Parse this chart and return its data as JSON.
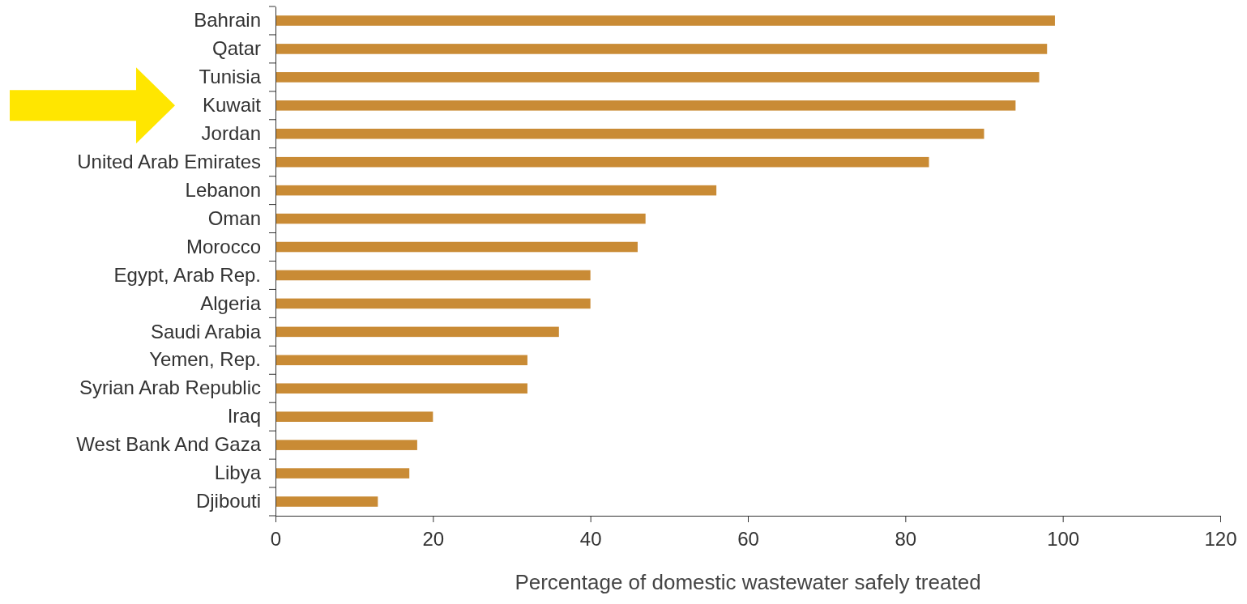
{
  "chart_data": {
    "type": "bar",
    "orientation": "horizontal",
    "xlabel": "Percentage of domestic wastewater safely treated",
    "categories": [
      "Bahrain",
      "Qatar",
      "Tunisia",
      "Kuwait",
      "Jordan",
      "United Arab Emirates",
      "Lebanon",
      "Oman",
      "Morocco",
      "Egypt, Arab Rep.",
      "Algeria",
      "Saudi Arabia",
      "Yemen, Rep.",
      "Syrian Arab Republic",
      "Iraq",
      "West Bank And Gaza",
      "Libya",
      "Djibouti"
    ],
    "values": [
      99,
      98,
      97,
      94,
      90,
      83,
      56,
      47,
      46,
      40,
      40,
      36,
      32,
      32,
      20,
      18,
      17,
      13
    ],
    "color": "#c98b35",
    "xlim": [
      0,
      120
    ],
    "xticks": [
      0,
      20,
      40,
      60,
      80,
      100,
      120
    ],
    "grid": false
  }
}
